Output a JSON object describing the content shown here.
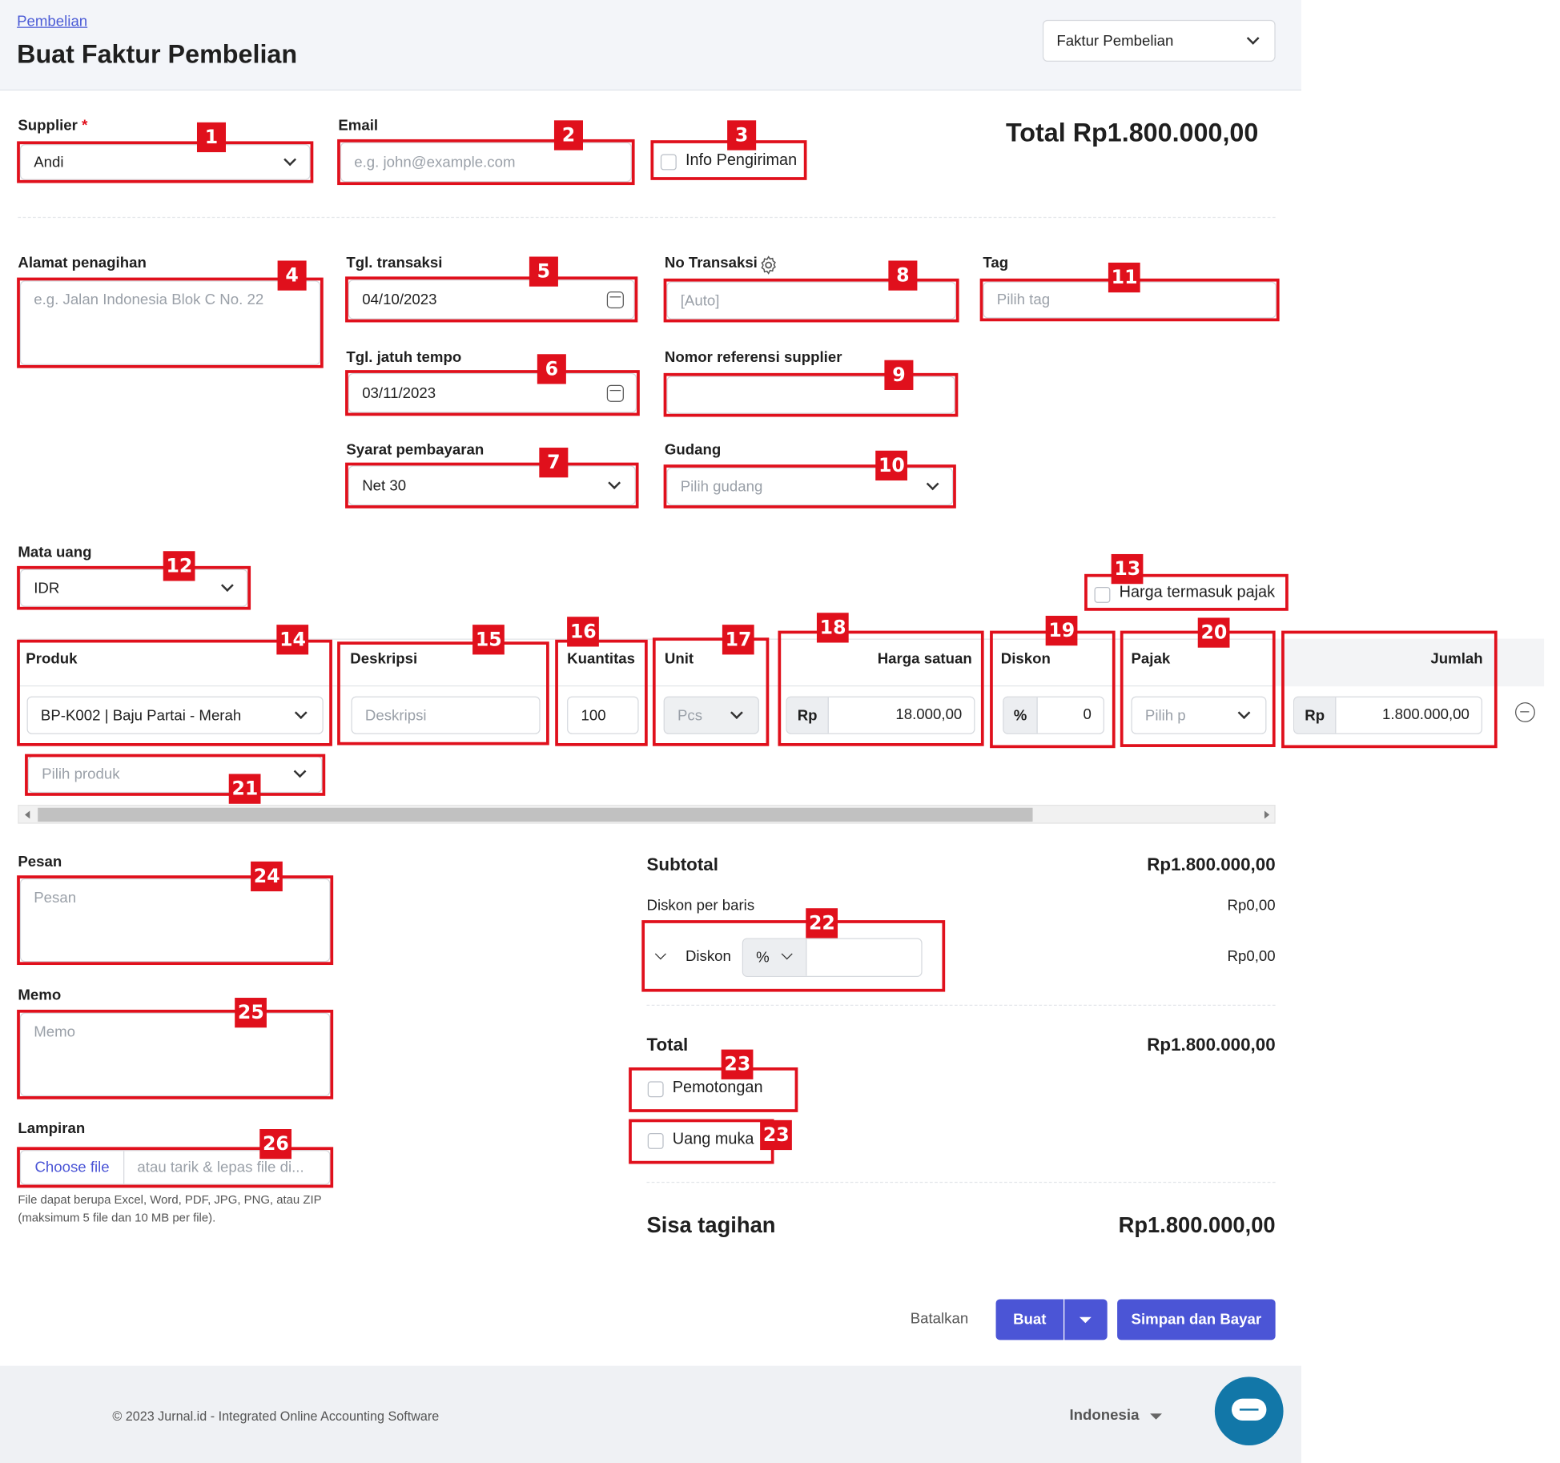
{
  "breadcrumb": "Pembelian",
  "page_title": "Buat Faktur Pembelian",
  "doc_type_select": "Faktur Pembelian",
  "supplier": {
    "label": "Supplier",
    "required_mark": "*",
    "value": "Andi"
  },
  "email": {
    "label": "Email",
    "placeholder": "e.g. john@example.com"
  },
  "shipping_info": {
    "label": "Info Pengiriman",
    "checked": false
  },
  "total_header": "Total Rp1.800.000,00",
  "billing_address": {
    "label": "Alamat penagihan",
    "placeholder": "e.g. Jalan Indonesia Blok C No. 22"
  },
  "transaction_date": {
    "label": "Tgl. transaksi",
    "value": "04/10/2023"
  },
  "due_date": {
    "label": "Tgl. jatuh tempo",
    "value": "03/11/2023"
  },
  "payment_terms": {
    "label": "Syarat pembayaran",
    "value": "Net 30"
  },
  "transaction_no": {
    "label": "No Transaksi",
    "placeholder": "[Auto]"
  },
  "supplier_ref": {
    "label": "Nomor referensi supplier",
    "value": ""
  },
  "warehouse": {
    "label": "Gudang",
    "placeholder": "Pilih gudang"
  },
  "tag": {
    "label": "Tag",
    "placeholder": "Pilih tag"
  },
  "currency": {
    "label": "Mata uang",
    "value": "IDR"
  },
  "price_incl_tax": {
    "label": "Harga termasuk pajak",
    "checked": false
  },
  "table": {
    "headers": {
      "product": "Produk",
      "description": "Deskripsi",
      "quantity": "Kuantitas",
      "unit": "Unit",
      "unit_price": "Harga satuan",
      "discount": "Diskon",
      "tax": "Pajak",
      "amount": "Jumlah"
    },
    "row": {
      "product": "BP-K002 | Baju Partai - Merah",
      "description_placeholder": "Deskripsi",
      "quantity": "100",
      "unit": "Pcs",
      "price_prefix": "Rp",
      "unit_price": "18.000,00",
      "discount_prefix": "%",
      "discount": "0",
      "tax_placeholder": "Pilih p",
      "amount_prefix": "Rp",
      "amount": "1.800.000,00"
    },
    "add_product_placeholder": "Pilih produk"
  },
  "message": {
    "label": "Pesan",
    "placeholder": "Pesan"
  },
  "memo": {
    "label": "Memo",
    "placeholder": "Memo"
  },
  "attachment": {
    "label": "Lampiran",
    "button": "Choose file",
    "placeholder": "atau tarik & lepas file di...",
    "help_line1": "File dapat berupa Excel, Word, PDF, JPG, PNG, atau ZIP",
    "help_line2": "(maksimum 5 file dan 10 MB per file)."
  },
  "summary": {
    "subtotal_label": "Subtotal",
    "subtotal_value": "Rp1.800.000,00",
    "line_discount_label": "Diskon per baris",
    "line_discount_value": "Rp0,00",
    "discount_label": "Diskon",
    "discount_type": "%",
    "discount_value": "Rp0,00",
    "total_label": "Total",
    "total_value": "Rp1.800.000,00",
    "deduction_label": "Pemotongan",
    "down_payment_label": "Uang muka",
    "balance_label": "Sisa tagihan",
    "balance_value": "Rp1.800.000,00"
  },
  "actions": {
    "cancel": "Batalkan",
    "create": "Buat",
    "save_and_pay": "Simpan dan Bayar"
  },
  "footer": {
    "copyright": "© 2023 Jurnal.id - Integrated Online Accounting Software",
    "language": "Indonesia"
  },
  "annotations": [
    "1",
    "2",
    "3",
    "4",
    "5",
    "6",
    "7",
    "8",
    "9",
    "10",
    "11",
    "12",
    "13",
    "14",
    "15",
    "16",
    "17",
    "18",
    "19",
    "20",
    "21",
    "22",
    "23",
    "23",
    "24",
    "25",
    "26"
  ],
  "colors": {
    "primary": "#4b55d6",
    "annotation_red": "#e0101c",
    "header_bg": "#f3f5f9",
    "chat_button": "#1277a8"
  }
}
